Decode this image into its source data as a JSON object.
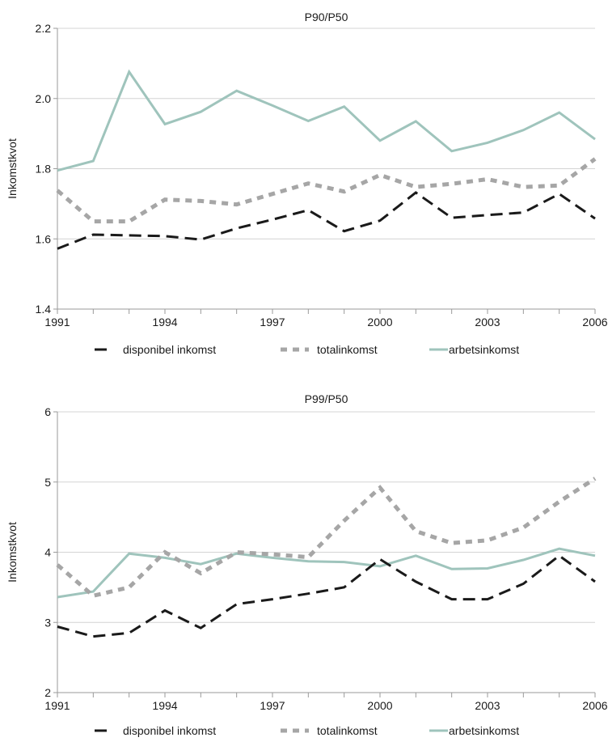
{
  "chart_data": [
    {
      "type": "line",
      "title": "P90/P50",
      "xlabel": "",
      "ylabel": "Inkomstkvot",
      "x": [
        1991,
        1992,
        1993,
        1994,
        1995,
        1996,
        1997,
        1998,
        1999,
        2000,
        2001,
        2002,
        2003,
        2004,
        2005,
        2006
      ],
      "x_tick_labels": [
        "1991",
        "1994",
        "1997",
        "2000",
        "2003",
        "2006"
      ],
      "y_tick_labels": [
        "1.4",
        "1.6",
        "1.8",
        "2.0",
        "2.2"
      ],
      "ylim": [
        1.4,
        2.2
      ],
      "grid": "horizontal",
      "legend_position": "bottom",
      "series": [
        {
          "name": "disponibel inkomst",
          "color": "#1a1a1a",
          "style": "dashed",
          "values": [
            1.572,
            1.612,
            1.61,
            1.608,
            1.598,
            1.63,
            1.655,
            1.682,
            1.622,
            1.652,
            1.732,
            1.66,
            1.668,
            1.675,
            1.728,
            1.658
          ]
        },
        {
          "name": "totalinkomst",
          "color": "#a6a6a6",
          "style": "dotted",
          "values": [
            1.738,
            1.65,
            1.65,
            1.712,
            1.708,
            1.698,
            1.728,
            1.758,
            1.735,
            1.782,
            1.748,
            1.757,
            1.77,
            1.748,
            1.752,
            1.828
          ]
        },
        {
          "name": "arbetsinkomst",
          "color": "#9fc4bc",
          "style": "solid",
          "values": [
            1.795,
            1.822,
            2.076,
            1.927,
            1.962,
            2.022,
            1.98,
            1.936,
            1.977,
            1.88,
            1.935,
            1.85,
            1.874,
            1.91,
            1.96,
            1.884
          ]
        }
      ]
    },
    {
      "type": "line",
      "title": "P99/P50",
      "xlabel": "",
      "ylabel": "Inkomstkvot",
      "x": [
        1991,
        1992,
        1993,
        1994,
        1995,
        1996,
        1997,
        1998,
        1999,
        2000,
        2001,
        2002,
        2003,
        2004,
        2005,
        2006
      ],
      "x_tick_labels": [
        "1991",
        "1994",
        "1997",
        "2000",
        "2003",
        "2006"
      ],
      "y_tick_labels": [
        "2",
        "3",
        "4",
        "5",
        "6"
      ],
      "ylim": [
        2,
        6
      ],
      "grid": "horizontal",
      "legend_position": "bottom",
      "series": [
        {
          "name": "disponibel inkomst",
          "color": "#1a1a1a",
          "style": "dashed",
          "values": [
            2.94,
            2.8,
            2.85,
            3.17,
            2.92,
            3.26,
            3.33,
            3.41,
            3.5,
            3.9,
            3.58,
            3.33,
            3.33,
            3.55,
            3.95,
            3.58
          ]
        },
        {
          "name": "totalinkomst",
          "color": "#a6a6a6",
          "style": "dotted",
          "values": [
            3.82,
            3.38,
            3.5,
            4.0,
            3.7,
            4.0,
            3.97,
            3.93,
            4.45,
            4.92,
            4.3,
            4.13,
            4.17,
            4.35,
            4.72,
            5.05
          ]
        },
        {
          "name": "arbetsinkomst",
          "color": "#9fc4bc",
          "style": "solid",
          "values": [
            3.36,
            3.44,
            3.98,
            3.92,
            3.83,
            3.98,
            3.92,
            3.87,
            3.86,
            3.8,
            3.95,
            3.76,
            3.77,
            3.89,
            4.05,
            3.95
          ]
        }
      ]
    }
  ]
}
